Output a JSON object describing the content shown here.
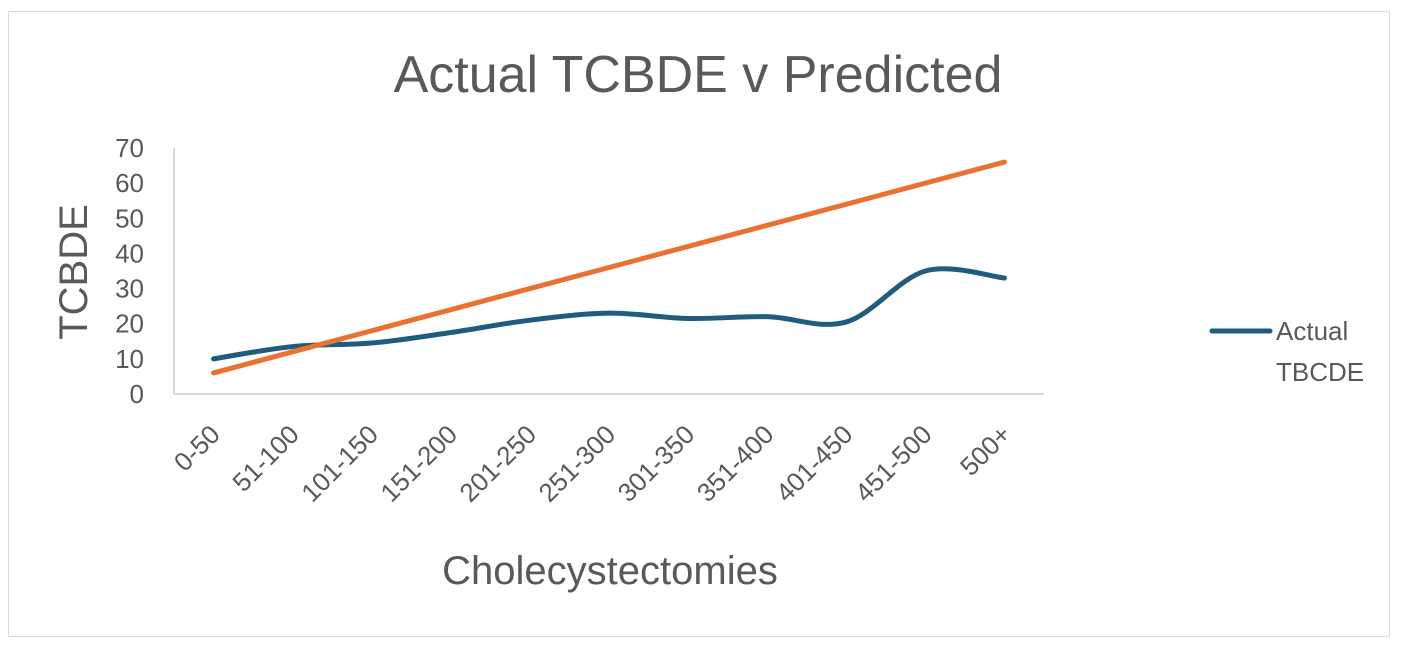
{
  "chart_data": {
    "type": "line",
    "title": "Actual TCBDE v Predicted",
    "xlabel": "Cholecystectomies",
    "ylabel": "TCBDE",
    "categories": [
      "0-50",
      "51-100",
      "101-150",
      "151-200",
      "201-250",
      "251-300",
      "301-350",
      "351-400",
      "401-450",
      "451-500",
      "500+"
    ],
    "ylim": [
      0,
      70
    ],
    "yticks": [
      "0",
      "10",
      "20",
      "30",
      "40",
      "50",
      "60",
      "70"
    ],
    "grid": false,
    "legend_position": "right",
    "series": [
      {
        "name": "Actual TBCDE",
        "color": "#1f5c7f",
        "smooth": true,
        "values": [
          10,
          13.5,
          14.5,
          17.5,
          21,
          23,
          21.5,
          22,
          20.5,
          35,
          33
        ]
      },
      {
        "name": "",
        "color": "#e97132",
        "smooth": false,
        "values": [
          6,
          12,
          18,
          24,
          30,
          36,
          42,
          48,
          54,
          60,
          66
        ]
      }
    ]
  }
}
